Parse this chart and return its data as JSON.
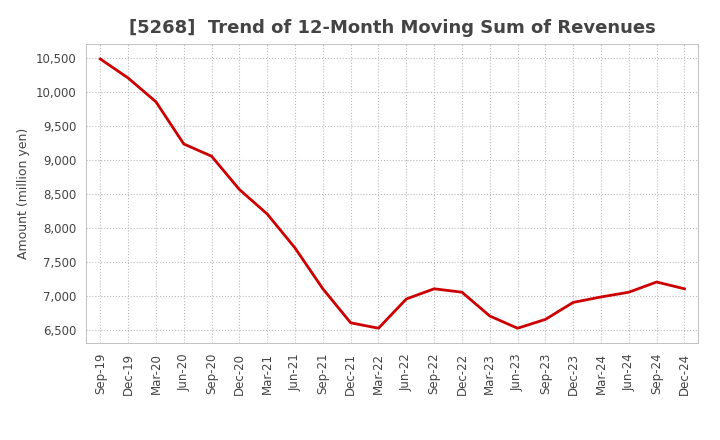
{
  "title": "[5268]  Trend of 12-Month Moving Sum of Revenues",
  "ylabel": "Amount (million yen)",
  "background_color": "#ffffff",
  "grid_color": "#bbbbbb",
  "line_color": "#cc0000",
  "x_labels": [
    "Sep-19",
    "Dec-19",
    "Mar-20",
    "Jun-20",
    "Sep-20",
    "Dec-20",
    "Mar-21",
    "Jun-21",
    "Sep-21",
    "Dec-21",
    "Mar-22",
    "Jun-22",
    "Sep-22",
    "Dec-22",
    "Mar-23",
    "Jun-23",
    "Sep-23",
    "Dec-23",
    "Mar-24",
    "Jun-24",
    "Sep-24",
    "Dec-24"
  ],
  "y_values": [
    10480,
    10200,
    9850,
    9230,
    9050,
    8560,
    8200,
    7700,
    7100,
    6600,
    6520,
    6950,
    7100,
    7050,
    6700,
    6520,
    6650,
    6900,
    6980,
    7050,
    7200,
    7100
  ],
  "ylim": [
    6300,
    10700
  ],
  "yticks": [
    6500,
    7000,
    7500,
    8000,
    8500,
    9000,
    9500,
    10000,
    10500
  ],
  "title_fontsize": 13,
  "title_color": "#444444",
  "axis_fontsize": 9,
  "tick_fontsize": 8.5
}
